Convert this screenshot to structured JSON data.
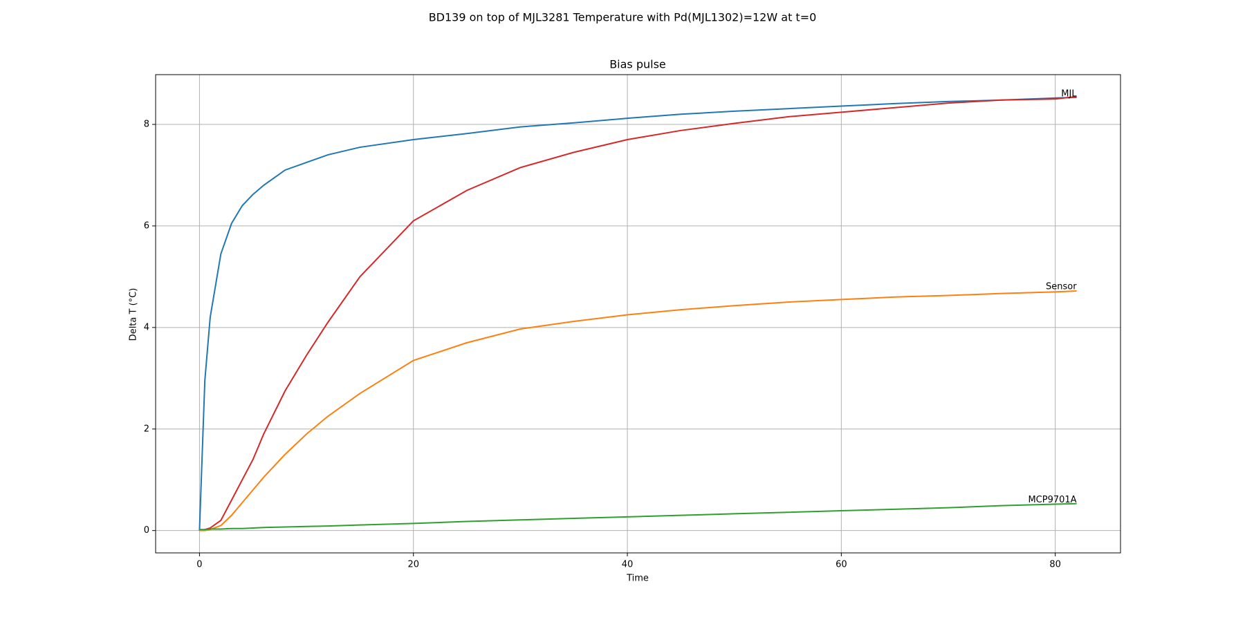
{
  "chart_data": {
    "type": "line",
    "title": "BD139 on top of MJL3281 Temperature with Pd(MJL1302)=12W at t=0",
    "subtitle": "Bias pulse",
    "x_label": "Time",
    "y_label": "Delta T (°C)",
    "x": [
      0,
      0.5,
      1,
      2,
      3,
      4,
      5,
      6,
      8,
      10,
      12,
      15,
      20,
      25,
      30,
      35,
      40,
      45,
      50,
      55,
      60,
      65,
      70,
      75,
      80,
      82
    ],
    "series": [
      {
        "color": "#1f77b4",
        "values": [
          0,
          2.95,
          4.2,
          5.45,
          6.05,
          6.4,
          6.62,
          6.8,
          7.1,
          7.25,
          7.4,
          7.55,
          7.7,
          7.82,
          7.95,
          8.03,
          8.12,
          8.2,
          8.26,
          8.31,
          8.36,
          8.41,
          8.45,
          8.48,
          8.52,
          8.53
        ]
      },
      {
        "color": "#d62728",
        "values": [
          0,
          0.02,
          0.05,
          0.2,
          0.6,
          1.0,
          1.4,
          1.9,
          2.75,
          3.45,
          4.1,
          5.0,
          6.1,
          6.7,
          7.15,
          7.45,
          7.7,
          7.88,
          8.02,
          8.15,
          8.24,
          8.33,
          8.42,
          8.48,
          8.5,
          8.55
        ]
      },
      {
        "color": "#ff7f0e",
        "values": [
          0,
          0,
          0.02,
          0.1,
          0.3,
          0.55,
          0.8,
          1.05,
          1.5,
          1.9,
          2.25,
          2.7,
          3.35,
          3.7,
          3.97,
          4.12,
          4.25,
          4.35,
          4.43,
          4.5,
          4.55,
          4.6,
          4.63,
          4.67,
          4.7,
          4.72
        ]
      },
      {
        "color": "#2ca02c",
        "values": [
          0.02,
          0.02,
          0.03,
          0.03,
          0.04,
          0.04,
          0.05,
          0.06,
          0.07,
          0.08,
          0.09,
          0.11,
          0.14,
          0.18,
          0.21,
          0.24,
          0.27,
          0.3,
          0.33,
          0.36,
          0.39,
          0.42,
          0.45,
          0.49,
          0.52,
          0.53
        ]
      }
    ],
    "annotations": [
      {
        "text": "MJL",
        "x": 82,
        "y": 8.6
      },
      {
        "text": "Sensor",
        "x": 82,
        "y": 4.8
      },
      {
        "text": "MCP9701A",
        "x": 82,
        "y": 0.6
      }
    ],
    "xlim": [
      -4.1,
      86.1
    ],
    "ylim": [
      -0.44,
      8.98
    ],
    "xticks": [
      0,
      20,
      40,
      60,
      80
    ],
    "yticks": [
      0,
      2,
      4,
      6,
      8
    ],
    "grid": true
  }
}
